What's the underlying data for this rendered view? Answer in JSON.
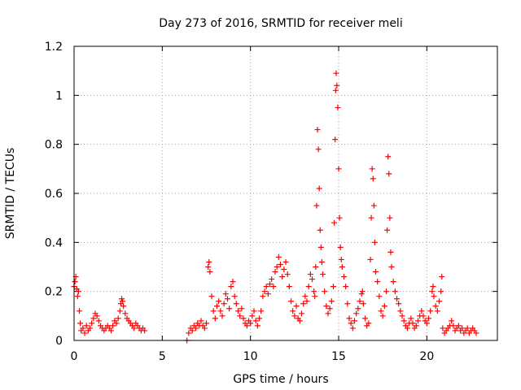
{
  "chart_data": {
    "type": "scatter",
    "title": "Day 273 of 2016, SRMTID for receiver meli",
    "xlabel": "GPS time / hours",
    "ylabel": "SRMTID / TECUs",
    "xlim": [
      0,
      24
    ],
    "ylim": [
      0,
      1.2
    ],
    "x_ticks": [
      0,
      5,
      10,
      15,
      20
    ],
    "x_tick_labels": [
      "0",
      "5",
      "10",
      "15",
      "20"
    ],
    "y_ticks": [
      0,
      0.2,
      0.4,
      0.6,
      0.8,
      1.0,
      1.2
    ],
    "y_tick_labels": [
      "0",
      "0.2",
      "0.4",
      "0.6",
      "0.8",
      "1",
      "1.2"
    ],
    "grid": true,
    "marker": "+",
    "series": [
      {
        "name": "SRMTID",
        "color": "#ff0000",
        "points": [
          [
            0.0,
            0.22
          ],
          [
            0.05,
            0.24
          ],
          [
            0.1,
            0.26
          ],
          [
            0.15,
            0.21
          ],
          [
            0.2,
            0.18
          ],
          [
            0.25,
            0.2
          ],
          [
            0.3,
            0.12
          ],
          [
            0.35,
            0.07
          ],
          [
            0.4,
            0.04
          ],
          [
            0.5,
            0.05
          ],
          [
            0.6,
            0.03
          ],
          [
            0.7,
            0.06
          ],
          [
            0.8,
            0.04
          ],
          [
            0.9,
            0.05
          ],
          [
            1.0,
            0.07
          ],
          [
            1.1,
            0.09
          ],
          [
            1.2,
            0.11
          ],
          [
            1.3,
            0.1
          ],
          [
            1.4,
            0.08
          ],
          [
            1.5,
            0.06
          ],
          [
            1.6,
            0.05
          ],
          [
            1.7,
            0.04
          ],
          [
            1.8,
            0.05
          ],
          [
            1.9,
            0.06
          ],
          [
            2.0,
            0.05
          ],
          [
            2.1,
            0.04
          ],
          [
            2.2,
            0.06
          ],
          [
            2.3,
            0.08
          ],
          [
            2.4,
            0.07
          ],
          [
            2.5,
            0.09
          ],
          [
            2.6,
            0.12
          ],
          [
            2.65,
            0.15
          ],
          [
            2.7,
            0.17
          ],
          [
            2.75,
            0.16
          ],
          [
            2.8,
            0.14
          ],
          [
            2.9,
            0.11
          ],
          [
            3.0,
            0.09
          ],
          [
            3.1,
            0.08
          ],
          [
            3.2,
            0.07
          ],
          [
            3.3,
            0.06
          ],
          [
            3.4,
            0.05
          ],
          [
            3.5,
            0.07
          ],
          [
            3.6,
            0.06
          ],
          [
            3.7,
            0.05
          ],
          [
            3.8,
            0.04
          ],
          [
            3.9,
            0.05
          ],
          [
            4.0,
            0.04
          ],
          [
            6.4,
            0.0
          ],
          [
            6.5,
            0.03
          ],
          [
            6.6,
            0.05
          ],
          [
            6.7,
            0.04
          ],
          [
            6.8,
            0.06
          ],
          [
            6.9,
            0.05
          ],
          [
            7.0,
            0.07
          ],
          [
            7.1,
            0.06
          ],
          [
            7.2,
            0.08
          ],
          [
            7.3,
            0.06
          ],
          [
            7.4,
            0.05
          ],
          [
            7.5,
            0.07
          ],
          [
            7.6,
            0.3
          ],
          [
            7.65,
            0.32
          ],
          [
            7.7,
            0.28
          ],
          [
            7.8,
            0.18
          ],
          [
            7.9,
            0.12
          ],
          [
            8.0,
            0.09
          ],
          [
            8.1,
            0.14
          ],
          [
            8.2,
            0.16
          ],
          [
            8.3,
            0.12
          ],
          [
            8.4,
            0.1
          ],
          [
            8.5,
            0.15
          ],
          [
            8.6,
            0.19
          ],
          [
            8.7,
            0.17
          ],
          [
            8.8,
            0.13
          ],
          [
            8.9,
            0.22
          ],
          [
            9.0,
            0.24
          ],
          [
            9.1,
            0.18
          ],
          [
            9.2,
            0.15
          ],
          [
            9.3,
            0.12
          ],
          [
            9.4,
            0.1
          ],
          [
            9.5,
            0.13
          ],
          [
            9.6,
            0.09
          ],
          [
            9.7,
            0.07
          ],
          [
            9.8,
            0.06
          ],
          [
            9.9,
            0.08
          ],
          [
            10.0,
            0.07
          ],
          [
            10.1,
            0.1
          ],
          [
            10.2,
            0.12
          ],
          [
            10.3,
            0.08
          ],
          [
            10.4,
            0.06
          ],
          [
            10.5,
            0.09
          ],
          [
            10.6,
            0.12
          ],
          [
            10.7,
            0.18
          ],
          [
            10.8,
            0.2
          ],
          [
            10.9,
            0.22
          ],
          [
            11.0,
            0.19
          ],
          [
            11.1,
            0.23
          ],
          [
            11.2,
            0.25
          ],
          [
            11.3,
            0.22
          ],
          [
            11.4,
            0.28
          ],
          [
            11.5,
            0.3
          ],
          [
            11.6,
            0.34
          ],
          [
            11.7,
            0.31
          ],
          [
            11.8,
            0.26
          ],
          [
            11.9,
            0.29
          ],
          [
            12.0,
            0.32
          ],
          [
            12.1,
            0.27
          ],
          [
            12.2,
            0.22
          ],
          [
            12.3,
            0.16
          ],
          [
            12.4,
            0.12
          ],
          [
            12.5,
            0.1
          ],
          [
            12.6,
            0.14
          ],
          [
            12.7,
            0.09
          ],
          [
            12.8,
            0.08
          ],
          [
            12.9,
            0.11
          ],
          [
            13.0,
            0.15
          ],
          [
            13.1,
            0.18
          ],
          [
            13.2,
            0.16
          ],
          [
            13.3,
            0.22
          ],
          [
            13.4,
            0.27
          ],
          [
            13.5,
            0.25
          ],
          [
            13.6,
            0.2
          ],
          [
            13.65,
            0.18
          ],
          [
            13.7,
            0.3
          ],
          [
            13.75,
            0.55
          ],
          [
            13.8,
            0.86
          ],
          [
            13.85,
            0.78
          ],
          [
            13.9,
            0.62
          ],
          [
            13.95,
            0.45
          ],
          [
            14.0,
            0.38
          ],
          [
            14.05,
            0.32
          ],
          [
            14.1,
            0.27
          ],
          [
            14.2,
            0.2
          ],
          [
            14.3,
            0.14
          ],
          [
            14.4,
            0.11
          ],
          [
            14.5,
            0.13
          ],
          [
            14.6,
            0.16
          ],
          [
            14.7,
            0.22
          ],
          [
            14.75,
            0.48
          ],
          [
            14.8,
            0.82
          ],
          [
            14.83,
            1.02
          ],
          [
            14.86,
            1.09
          ],
          [
            14.9,
            1.04
          ],
          [
            14.95,
            0.95
          ],
          [
            15.0,
            0.7
          ],
          [
            15.05,
            0.5
          ],
          [
            15.1,
            0.38
          ],
          [
            15.15,
            0.33
          ],
          [
            15.2,
            0.3
          ],
          [
            15.3,
            0.26
          ],
          [
            15.4,
            0.22
          ],
          [
            15.5,
            0.15
          ],
          [
            15.6,
            0.09
          ],
          [
            15.7,
            0.07
          ],
          [
            15.8,
            0.05
          ],
          [
            15.9,
            0.08
          ],
          [
            16.0,
            0.11
          ],
          [
            16.1,
            0.13
          ],
          [
            16.2,
            0.16
          ],
          [
            16.3,
            0.19
          ],
          [
            16.35,
            0.2
          ],
          [
            16.4,
            0.15
          ],
          [
            16.5,
            0.09
          ],
          [
            16.6,
            0.06
          ],
          [
            16.7,
            0.07
          ],
          [
            16.8,
            0.33
          ],
          [
            16.85,
            0.5
          ],
          [
            16.9,
            0.7
          ],
          [
            16.95,
            0.66
          ],
          [
            17.0,
            0.55
          ],
          [
            17.05,
            0.4
          ],
          [
            17.1,
            0.28
          ],
          [
            17.2,
            0.24
          ],
          [
            17.3,
            0.18
          ],
          [
            17.4,
            0.12
          ],
          [
            17.5,
            0.1
          ],
          [
            17.6,
            0.14
          ],
          [
            17.7,
            0.2
          ],
          [
            17.75,
            0.45
          ],
          [
            17.8,
            0.75
          ],
          [
            17.85,
            0.68
          ],
          [
            17.9,
            0.5
          ],
          [
            17.95,
            0.36
          ],
          [
            18.0,
            0.3
          ],
          [
            18.1,
            0.24
          ],
          [
            18.2,
            0.2
          ],
          [
            18.3,
            0.17
          ],
          [
            18.4,
            0.15
          ],
          [
            18.5,
            0.12
          ],
          [
            18.6,
            0.1
          ],
          [
            18.7,
            0.08
          ],
          [
            18.8,
            0.06
          ],
          [
            18.9,
            0.05
          ],
          [
            19.0,
            0.07
          ],
          [
            19.1,
            0.09
          ],
          [
            19.2,
            0.07
          ],
          [
            19.3,
            0.05
          ],
          [
            19.4,
            0.06
          ],
          [
            19.5,
            0.08
          ],
          [
            19.6,
            0.1
          ],
          [
            19.7,
            0.12
          ],
          [
            19.8,
            0.1
          ],
          [
            19.9,
            0.08
          ],
          [
            20.0,
            0.07
          ],
          [
            20.1,
            0.09
          ],
          [
            20.2,
            0.12
          ],
          [
            20.3,
            0.2
          ],
          [
            20.35,
            0.22
          ],
          [
            20.4,
            0.18
          ],
          [
            20.5,
            0.14
          ],
          [
            20.6,
            0.12
          ],
          [
            20.7,
            0.16
          ],
          [
            20.8,
            0.2
          ],
          [
            20.85,
            0.26
          ],
          [
            20.9,
            0.05
          ],
          [
            21.0,
            0.03
          ],
          [
            21.1,
            0.04
          ],
          [
            21.2,
            0.05
          ],
          [
            21.3,
            0.06
          ],
          [
            21.4,
            0.08
          ],
          [
            21.5,
            0.06
          ],
          [
            21.6,
            0.04
          ],
          [
            21.7,
            0.05
          ],
          [
            21.8,
            0.06
          ],
          [
            21.9,
            0.04
          ],
          [
            22.0,
            0.05
          ],
          [
            22.1,
            0.03
          ],
          [
            22.2,
            0.04
          ],
          [
            22.3,
            0.05
          ],
          [
            22.4,
            0.03
          ],
          [
            22.5,
            0.04
          ],
          [
            22.6,
            0.05
          ],
          [
            22.7,
            0.04
          ],
          [
            22.8,
            0.03
          ]
        ]
      }
    ]
  }
}
